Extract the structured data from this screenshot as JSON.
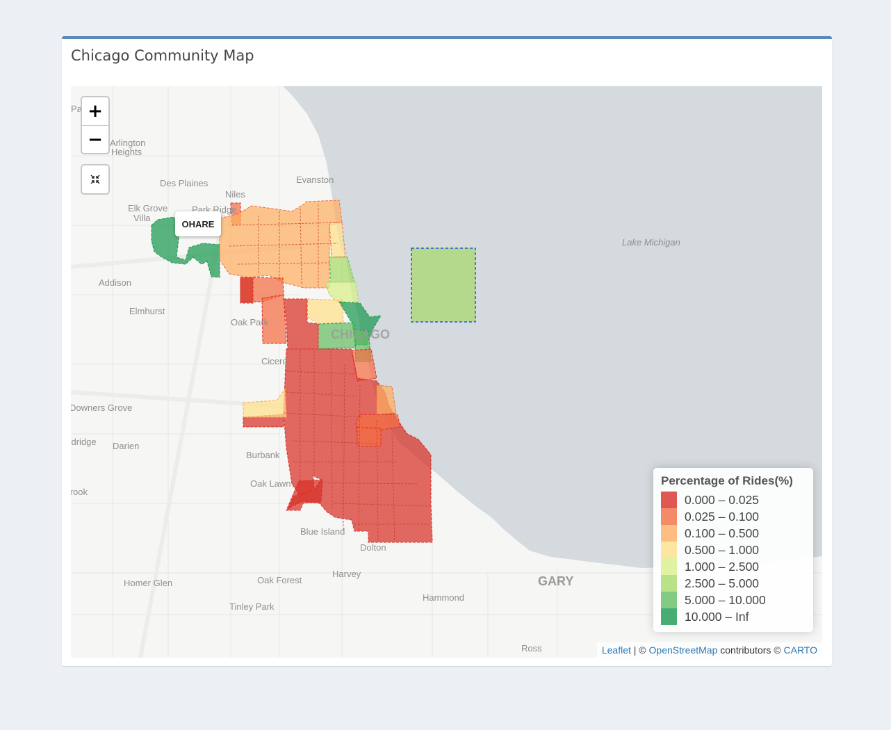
{
  "box": {
    "title": "Chicago Community Map"
  },
  "map": {
    "zoom_in_label": "+",
    "zoom_out_label": "−",
    "reset_icon": "collapse-arrows-icon",
    "tooltip": "OHARE",
    "water_label": "Lake Michigan",
    "city_label": "CHICAGO",
    "place_labels": [
      "Evanston",
      "Des Plaines",
      "Niles",
      "Elk Grove",
      "Villa",
      "Park Ridge",
      "Addison",
      "Elmhurst",
      "Oak Park",
      "Cicero",
      "Downers Grove",
      "Darien",
      "Woodridge",
      "Burbank",
      "Oak Lawn",
      "Blue Island",
      "Dolton",
      "Harvey",
      "Homer Glen",
      "Oak Forest",
      "Tinley Park",
      "Hammond",
      "GARY",
      "Ross",
      "Arlington Heights",
      "Palatine",
      "Brook"
    ]
  },
  "legend": {
    "title": "Percentage of Rides(%)",
    "items": [
      {
        "label": "0.000 – 0.025",
        "color": "#d73027"
      },
      {
        "label": "0.025 – 0.100",
        "color": "#f46d43"
      },
      {
        "label": "0.100 – 0.500",
        "color": "#fdae61"
      },
      {
        "label": "0.500 – 1.000",
        "color": "#fee08b"
      },
      {
        "label": "1.000 – 2.500",
        "color": "#d9ef8b"
      },
      {
        "label": "2.500 – 5.000",
        "color": "#a6d96a"
      },
      {
        "label": "5.000 – 10.000",
        "color": "#66bd63"
      },
      {
        "label": "10.000 – Inf",
        "color": "#1a9850"
      }
    ]
  },
  "attribution": {
    "leaflet": "Leaflet",
    "sep": " | © ",
    "osm": "OpenStreetMap",
    "contributors": " contributors © ",
    "carto": "CARTO"
  }
}
